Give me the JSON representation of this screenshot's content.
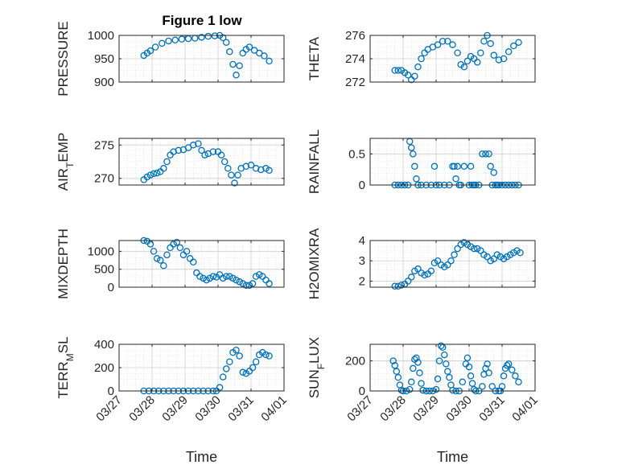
{
  "figure": {
    "title": "Figure 1 low",
    "x_label": "Time",
    "x_ticks": [
      "03/27",
      "03/28",
      "03/29",
      "03/30",
      "03/31",
      "04/01"
    ],
    "marker_color": "#0072BD"
  },
  "chart_data": [
    {
      "type": "scatter",
      "ylabel": "PRESSURE",
      "ylim": [
        900,
        1000
      ],
      "yticks": [
        "900",
        "950",
        "1000"
      ],
      "xlim": [
        "03/27",
        "04/01"
      ],
      "grid": true,
      "series": [
        {
          "x": [
            27.75,
            27.85,
            27.95,
            28.1,
            28.3,
            28.5,
            28.7,
            28.9,
            29.1,
            29.3,
            29.5,
            29.7,
            29.9,
            30.05,
            30.15,
            30.25,
            30.35,
            30.45,
            30.55,
            30.65,
            30.75,
            30.85,
            30.95,
            31.1,
            31.25,
            31.4,
            31.55
          ],
          "y": [
            957,
            962,
            967,
            975,
            983,
            988,
            990,
            992,
            993,
            994,
            996,
            998,
            999,
            1000,
            995,
            985,
            965,
            938,
            915,
            935,
            962,
            970,
            975,
            968,
            962,
            956,
            945
          ]
        }
      ]
    },
    {
      "type": "scatter",
      "ylabel": "THETA",
      "ylim": [
        272,
        276
      ],
      "yticks": [
        "272",
        "274",
        "276"
      ],
      "xlim": [
        "03/27",
        "04/01"
      ],
      "grid": true,
      "series": [
        {
          "x": [
            27.75,
            27.85,
            27.95,
            28.05,
            28.15,
            28.25,
            28.35,
            28.45,
            28.55,
            28.65,
            28.75,
            28.9,
            29.05,
            29.2,
            29.35,
            29.5,
            29.65,
            29.75,
            29.85,
            29.95,
            30.05,
            30.15,
            30.25,
            30.35,
            30.45,
            30.55,
            30.65,
            30.75,
            30.9,
            31.05,
            31.2,
            31.35,
            31.5
          ],
          "y": [
            273,
            273,
            273,
            272.8,
            272.6,
            272.2,
            272.5,
            273.3,
            274,
            274.5,
            274.8,
            275,
            275.2,
            275.5,
            275.5,
            275.2,
            274.5,
            273.5,
            273.3,
            273.8,
            274.2,
            274,
            273.7,
            274.5,
            275.5,
            276,
            275.3,
            274.3,
            273.9,
            274,
            274.6,
            275.1,
            275.4
          ]
        }
      ]
    },
    {
      "type": "scatter",
      "ylabel": "AIR_TEMP",
      "ylim": [
        269,
        276
      ],
      "yticks": [
        "270",
        "275"
      ],
      "xlim": [
        "03/27",
        "04/01"
      ],
      "grid": true,
      "series": [
        {
          "x": [
            27.75,
            27.85,
            27.95,
            28.05,
            28.15,
            28.25,
            28.35,
            28.45,
            28.55,
            28.65,
            28.8,
            28.95,
            29.1,
            29.25,
            29.4,
            29.5,
            29.6,
            29.7,
            29.85,
            30,
            30.1,
            30.2,
            30.3,
            30.4,
            30.5,
            30.6,
            30.7,
            30.85,
            31,
            31.15,
            31.3,
            31.45,
            31.55
          ],
          "y": [
            269.8,
            270.2,
            270.5,
            270.7,
            270.8,
            271,
            271.5,
            272.5,
            273.5,
            274,
            274.2,
            274.3,
            274.6,
            275,
            275.2,
            274.2,
            273.5,
            273.7,
            274,
            274,
            273.5,
            272.5,
            271.5,
            270.5,
            269.3,
            270.5,
            271.5,
            271.8,
            272,
            271.5,
            271.3,
            271.5,
            271.2
          ]
        }
      ]
    },
    {
      "type": "scatter",
      "ylabel": "RAINFALL",
      "ylim": [
        0,
        0.75
      ],
      "yticks": [
        "0",
        "0.5"
      ],
      "xlim": [
        "03/27",
        "04/01"
      ],
      "grid": true,
      "series": [
        {
          "x": [
            27.75,
            27.85,
            27.95,
            28.05,
            28.15,
            28.2,
            28.25,
            28.3,
            28.35,
            28.4,
            28.45,
            28.55,
            28.7,
            28.85,
            28.95,
            29,
            29.1,
            29.25,
            29.4,
            29.5,
            29.55,
            29.6,
            29.65,
            29.7,
            29.75,
            29.85,
            30,
            30.05,
            30.1,
            30.15,
            30.2,
            30.3,
            30.4,
            30.5,
            30.6,
            30.65,
            30.7,
            30.75,
            30.8,
            30.85,
            30.9,
            31,
            31.1,
            31.2,
            31.3,
            31.4,
            31.5
          ],
          "y": [
            0,
            0,
            0,
            0,
            0,
            0.7,
            0.6,
            0.5,
            0.3,
            0.1,
            0,
            0,
            0,
            0,
            0.3,
            0,
            0,
            0,
            0,
            0.3,
            0.3,
            0.1,
            0.3,
            0,
            0,
            0.3,
            0,
            0.3,
            0,
            0,
            0,
            0,
            0.5,
            0.5,
            0.5,
            0.3,
            0,
            0.2,
            0,
            0,
            0,
            0,
            0,
            0,
            0,
            0,
            0
          ]
        }
      ]
    },
    {
      "type": "scatter",
      "ylabel": "MIXDEPTH",
      "ylim": [
        0,
        1300
      ],
      "yticks": [
        "0",
        "500",
        "1000"
      ],
      "xlim": [
        "03/27",
        "04/01"
      ],
      "grid": true,
      "series": [
        {
          "x": [
            27.75,
            27.85,
            27.95,
            28.05,
            28.15,
            28.25,
            28.35,
            28.45,
            28.55,
            28.65,
            28.75,
            28.85,
            28.95,
            29.05,
            29.15,
            29.25,
            29.35,
            29.45,
            29.55,
            29.65,
            29.75,
            29.85,
            29.95,
            30.05,
            30.15,
            30.25,
            30.35,
            30.45,
            30.55,
            30.65,
            30.75,
            30.85,
            30.95,
            31.05,
            31.15,
            31.25,
            31.35,
            31.45,
            31.55
          ],
          "y": [
            1300,
            1280,
            1200,
            1000,
            800,
            750,
            600,
            900,
            1100,
            1200,
            1250,
            1100,
            900,
            1000,
            800,
            700,
            400,
            300,
            250,
            200,
            250,
            300,
            280,
            350,
            250,
            300,
            300,
            250,
            200,
            150,
            100,
            50,
            50,
            100,
            300,
            350,
            300,
            200,
            100
          ]
        }
      ]
    },
    {
      "type": "scatter",
      "ylabel": "H2OMIXRA",
      "ylim": [
        1.7,
        4
      ],
      "yticks": [
        "2",
        "3",
        "4"
      ],
      "xlim": [
        "03/27",
        "04/01"
      ],
      "grid": true,
      "series": [
        {
          "x": [
            27.75,
            27.85,
            27.95,
            28.05,
            28.15,
            28.25,
            28.35,
            28.45,
            28.55,
            28.65,
            28.75,
            28.85,
            28.95,
            29.05,
            29.15,
            29.25,
            29.35,
            29.45,
            29.55,
            29.65,
            29.75,
            29.85,
            29.95,
            30.05,
            30.15,
            30.25,
            30.35,
            30.45,
            30.55,
            30.65,
            30.75,
            30.85,
            30.95,
            31.05,
            31.15,
            31.25,
            31.35,
            31.45,
            31.55
          ],
          "y": [
            1.75,
            1.75,
            1.8,
            1.85,
            2,
            2.2,
            2.5,
            2.6,
            2.4,
            2.3,
            2.35,
            2.5,
            2.9,
            3,
            2.8,
            2.7,
            2.8,
            3,
            3.3,
            3.6,
            3.8,
            3.9,
            3.8,
            3.7,
            3.6,
            3.6,
            3.5,
            3.3,
            3.2,
            3,
            3.1,
            3.3,
            3.2,
            3.1,
            3.2,
            3.3,
            3.4,
            3.5,
            3.4
          ]
        }
      ]
    },
    {
      "type": "scatter",
      "ylabel": "TERR_MSL",
      "ylim": [
        0,
        400
      ],
      "yticks": [
        "0",
        "200",
        "400"
      ],
      "xlim": [
        "03/27",
        "04/01"
      ],
      "grid": true,
      "series": [
        {
          "x": [
            27.75,
            27.9,
            28.05,
            28.2,
            28.35,
            28.5,
            28.65,
            28.8,
            28.95,
            29.1,
            29.25,
            29.4,
            29.55,
            29.7,
            29.85,
            29.95,
            30.05,
            30.15,
            30.25,
            30.35,
            30.45,
            30.55,
            30.65,
            30.75,
            30.85,
            30.95,
            31.05,
            31.15,
            31.25,
            31.35,
            31.45,
            31.55
          ],
          "y": [
            0,
            0,
            0,
            0,
            0,
            0,
            0,
            0,
            0,
            0,
            0,
            0,
            0,
            0,
            0,
            0,
            30,
            120,
            190,
            250,
            330,
            350,
            300,
            160,
            150,
            170,
            200,
            250,
            310,
            330,
            310,
            300
          ]
        }
      ]
    },
    {
      "type": "scatter",
      "ylabel": "SUN_FLUX",
      "ylim": [
        0,
        310
      ],
      "yticks": [
        "0",
        "200"
      ],
      "xlim": [
        "03/27",
        "04/01"
      ],
      "grid": true,
      "series": [
        {
          "x": [
            27.7,
            27.75,
            27.8,
            27.85,
            27.9,
            27.95,
            28,
            28.1,
            28.2,
            28.25,
            28.3,
            28.35,
            28.4,
            28.45,
            28.5,
            28.55,
            28.6,
            28.7,
            28.8,
            28.9,
            29,
            29.05,
            29.1,
            29.15,
            29.2,
            29.25,
            29.3,
            29.35,
            29.4,
            29.45,
            29.5,
            29.6,
            29.7,
            29.8,
            29.9,
            29.95,
            30,
            30.05,
            30.1,
            30.15,
            30.2,
            30.3,
            30.4,
            30.45,
            30.5,
            30.55,
            30.6,
            30.7,
            30.8,
            30.9,
            30.95,
            31,
            31.05,
            31.1,
            31.15,
            31.2,
            31.3,
            31.4,
            31.5
          ],
          "y": [
            200,
            170,
            130,
            90,
            40,
            5,
            0,
            0,
            10,
            60,
            150,
            210,
            220,
            190,
            120,
            50,
            5,
            0,
            0,
            0,
            10,
            80,
            200,
            300,
            290,
            240,
            180,
            130,
            90,
            40,
            5,
            0,
            0,
            60,
            180,
            220,
            160,
            100,
            50,
            10,
            0,
            0,
            30,
            110,
            150,
            180,
            120,
            30,
            0,
            0,
            0,
            30,
            100,
            150,
            170,
            180,
            140,
            100,
            60
          ]
        }
      ]
    }
  ]
}
